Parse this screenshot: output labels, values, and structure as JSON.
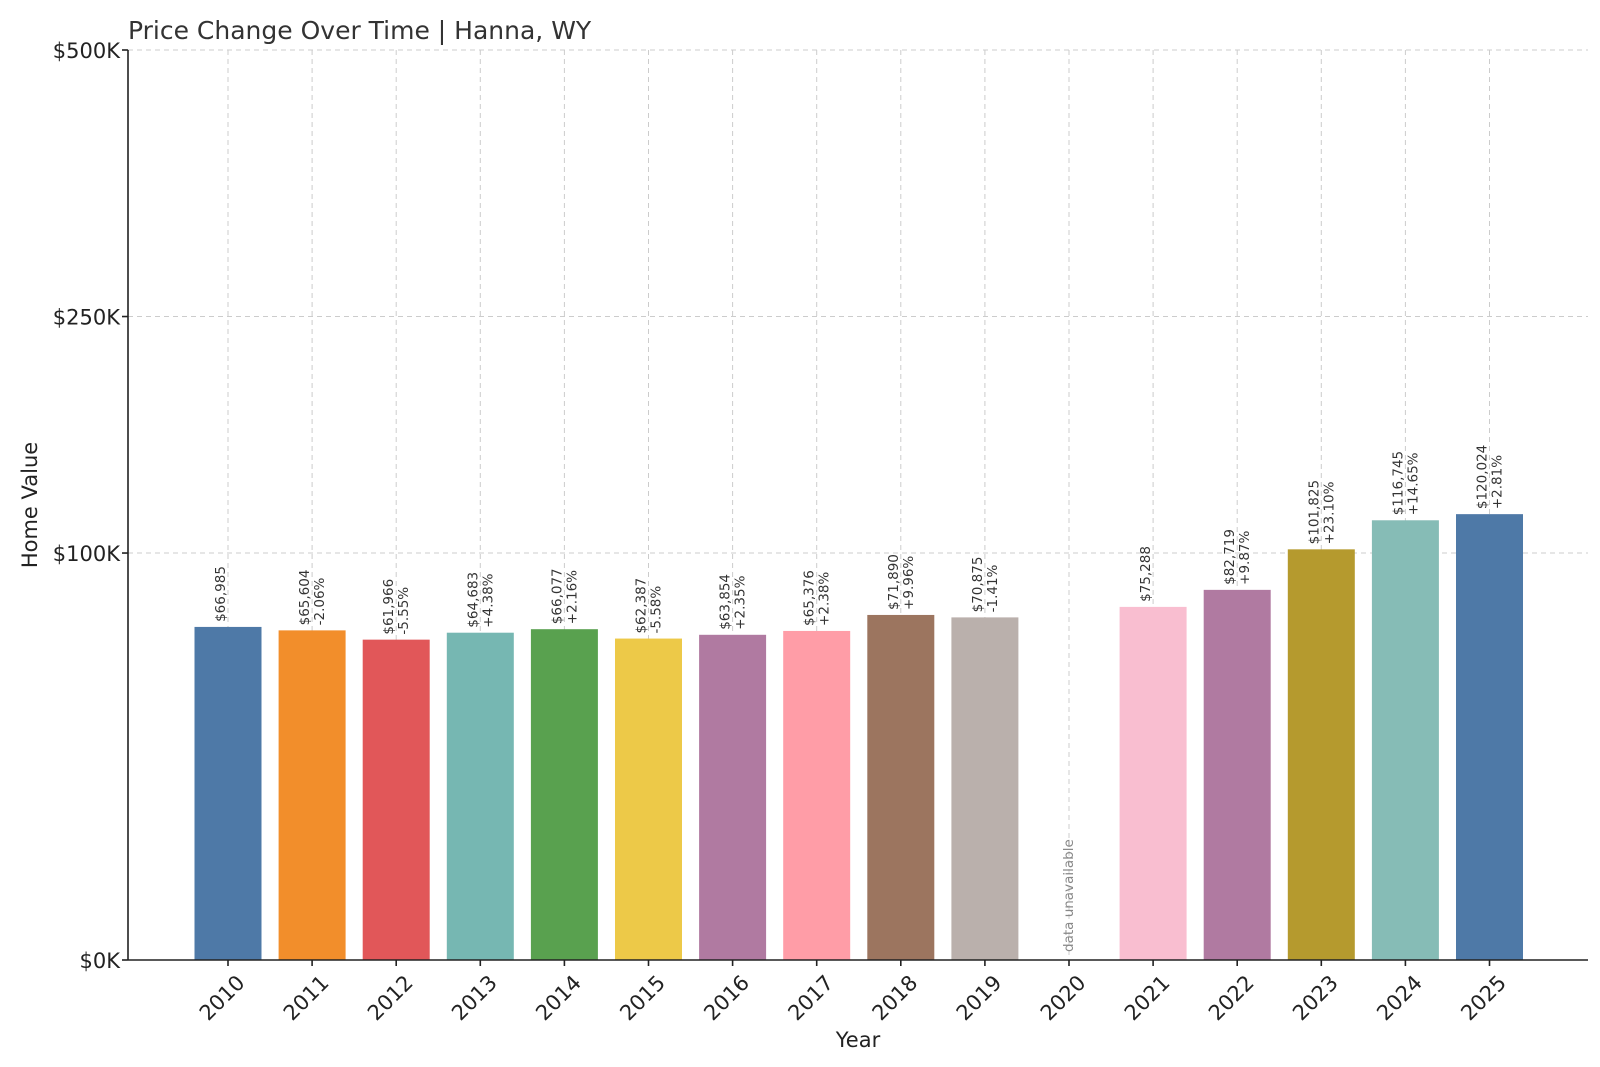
{
  "chart_data": {
    "type": "bar",
    "title": "Price Change Over Time | Hanna, WY",
    "xlabel": "Year",
    "ylabel": "Home Value",
    "ylim": [
      0,
      500000
    ],
    "yscale": "sqrt",
    "yticks": [
      {
        "value": 0,
        "label": "$0K"
      },
      {
        "value": 100000,
        "label": "$100K"
      },
      {
        "value": 250000,
        "label": "$250K"
      },
      {
        "value": 500000,
        "label": "$500K"
      }
    ],
    "grid": true,
    "categories": [
      "2010",
      "2011",
      "2012",
      "2013",
      "2014",
      "2015",
      "2016",
      "2017",
      "2018",
      "2019",
      "2020",
      "2021",
      "2022",
      "2023",
      "2024",
      "2025"
    ],
    "values": [
      66985,
      65604,
      61966,
      64683,
      66077,
      62387,
      63854,
      65376,
      71890,
      70875,
      null,
      75288,
      82719,
      101825,
      116745,
      120024
    ],
    "value_labels": [
      "$66,985",
      "$65,604",
      "$61,966",
      "$64,683",
      "$66,077",
      "$62,387",
      "$63,854",
      "$65,376",
      "$71,890",
      "$70,875",
      "",
      "$75,288",
      "$82,719",
      "$101,825",
      "$116,745",
      "$120,024"
    ],
    "change_labels": [
      "",
      "-2.06%",
      "-5.55%",
      "+4.38%",
      "+2.16%",
      "-5.58%",
      "+2.35%",
      "+2.38%",
      "+9.96%",
      "-1.41%",
      "",
      "",
      "+9.87%",
      "+23.10%",
      "+14.65%",
      "+2.81%"
    ],
    "missing_label": "data unavailable",
    "colors": [
      "#4e79a7",
      "#f28e2b",
      "#e15759",
      "#76b7b2",
      "#59a14f",
      "#edc948",
      "#b07aa1",
      "#ff9da7",
      "#9c755f",
      "#bab0ac",
      "#4e79a7",
      "#f9bed0",
      "#b07aa1",
      "#b59a2e",
      "#86bcb6",
      "#4e79a7"
    ]
  }
}
